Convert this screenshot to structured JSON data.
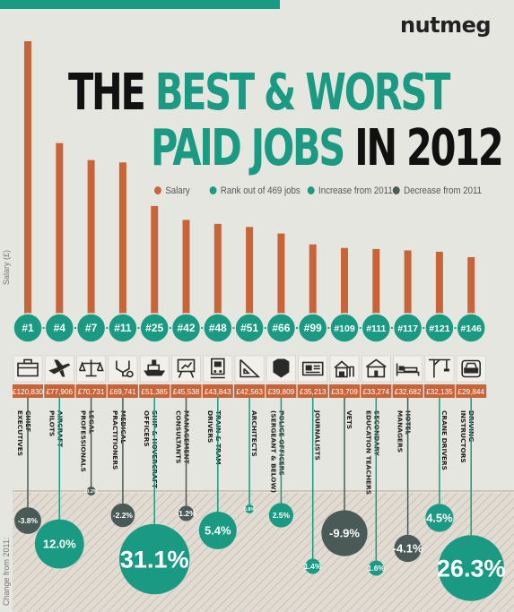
{
  "brand": "nutmeg",
  "title": {
    "line1_dark": "THE",
    "line1_teal": "BEST & WORST",
    "line2_teal": "PAID JOBS",
    "line2_dark": "IN 2012"
  },
  "legend": {
    "salary": "Salary",
    "rank": "Rank out of 469 jobs",
    "increase": "Increase from 2011",
    "decrease": "Decrease from 2011"
  },
  "colors": {
    "salary_bar": "#c8643a",
    "rank_teal": "#1a9a82",
    "increase": "#1a9a82",
    "decrease": "#4a5a56",
    "background": "#e6e6e0"
  },
  "chart_data": {
    "type": "bar",
    "ylabel": "Salary (£)",
    "change_label": "Change from 2011:",
    "ylim": [
      0,
      125000
    ],
    "series": [
      {
        "name": "Salary",
        "values": [
          120830,
          77906,
          70731,
          69741,
          51385,
          45538,
          43843,
          42563,
          39809,
          35213,
          33709,
          33274,
          32682,
          32135,
          29844
        ]
      }
    ],
    "jobs": [
      {
        "rank": "#1",
        "salary_label": "£120,830",
        "lines": [
          "CHIEF",
          "EXECUTIVES"
        ],
        "icon": "briefcase-icon",
        "change": -3.8,
        "change_label": "-3.8%"
      },
      {
        "rank": "#4",
        "salary_label": "£77,906",
        "lines": [
          "AIRCRAFT",
          "PILOTS"
        ],
        "icon": "airplane-icon",
        "change": 12.0,
        "change_label": "12.0%"
      },
      {
        "rank": "#7",
        "salary_label": "£70,731",
        "lines": [
          "LEGAL",
          "PROFESSIONALS"
        ],
        "icon": "scales-icon",
        "change": -0.2,
        "change_label": "-0.2%"
      },
      {
        "rank": "#11",
        "salary_label": "£69,741",
        "lines": [
          "MEDICAL",
          "PRACTITIONERS"
        ],
        "icon": "stethoscope-icon",
        "change": -2.2,
        "change_label": "-2.2%"
      },
      {
        "rank": "#25",
        "salary_label": "£51,385",
        "lines": [
          "SHIP & HOVERCRAFT",
          "OFFICERS"
        ],
        "icon": "ship-icon",
        "change": 31.1,
        "change_label": "31.1%"
      },
      {
        "rank": "#42",
        "salary_label": "£45,538",
        "lines": [
          "MANAGEMENT",
          "CONSULTANTS"
        ],
        "icon": "presentation-icon",
        "change": -1.2,
        "change_label": "-1.2%"
      },
      {
        "rank": "#48",
        "salary_label": "£43,843",
        "lines": [
          "TRAIN & TRAM",
          "DRIVERS"
        ],
        "icon": "train-icon",
        "change": 5.4,
        "change_label": "5.4%"
      },
      {
        "rank": "#51",
        "salary_label": "£42,563",
        "lines": [
          "ARCHITECTS"
        ],
        "icon": "set-square-icon",
        "change": 0.8,
        "change_label": "0.8%"
      },
      {
        "rank": "#66",
        "salary_label": "£39,809",
        "lines": [
          "POLICE OFFICERS",
          "(SERGEANT & BELOW)"
        ],
        "icon": "police-badge-icon",
        "change": 2.5,
        "change_label": "2.5%"
      },
      {
        "rank": "#99",
        "salary_label": "£35,213",
        "lines": [
          "JOURNALISTS"
        ],
        "icon": "newspaper-icon",
        "change": 1.4,
        "change_label": "1.4%"
      },
      {
        "rank": "#109",
        "salary_label": "£33,709",
        "lines": [
          "VETS"
        ],
        "icon": "farm-icon",
        "change": -9.9,
        "change_label": "-9.9%"
      },
      {
        "rank": "#111",
        "salary_label": "£33,274",
        "lines": [
          "SECONDARY",
          "EDUCATION TEACHERS"
        ],
        "icon": "school-icon",
        "change": 1.6,
        "change_label": "1.6%"
      },
      {
        "rank": "#117",
        "salary_label": "£32,682",
        "lines": [
          "HOTEL",
          "MANAGERS"
        ],
        "icon": "bed-icon",
        "change": -4.1,
        "change_label": "-4.1%"
      },
      {
        "rank": "#121",
        "salary_label": "£32,135",
        "lines": [
          "CRANE DRIVERS"
        ],
        "icon": "crane-icon",
        "change": 4.5,
        "change_label": "4.5%"
      },
      {
        "rank": "#146",
        "salary_label": "£29,844",
        "lines": [
          "DRIVING",
          "INSTRUCTORS"
        ],
        "icon": "car-icon",
        "change": 26.3,
        "change_label": "26.3%"
      }
    ]
  }
}
